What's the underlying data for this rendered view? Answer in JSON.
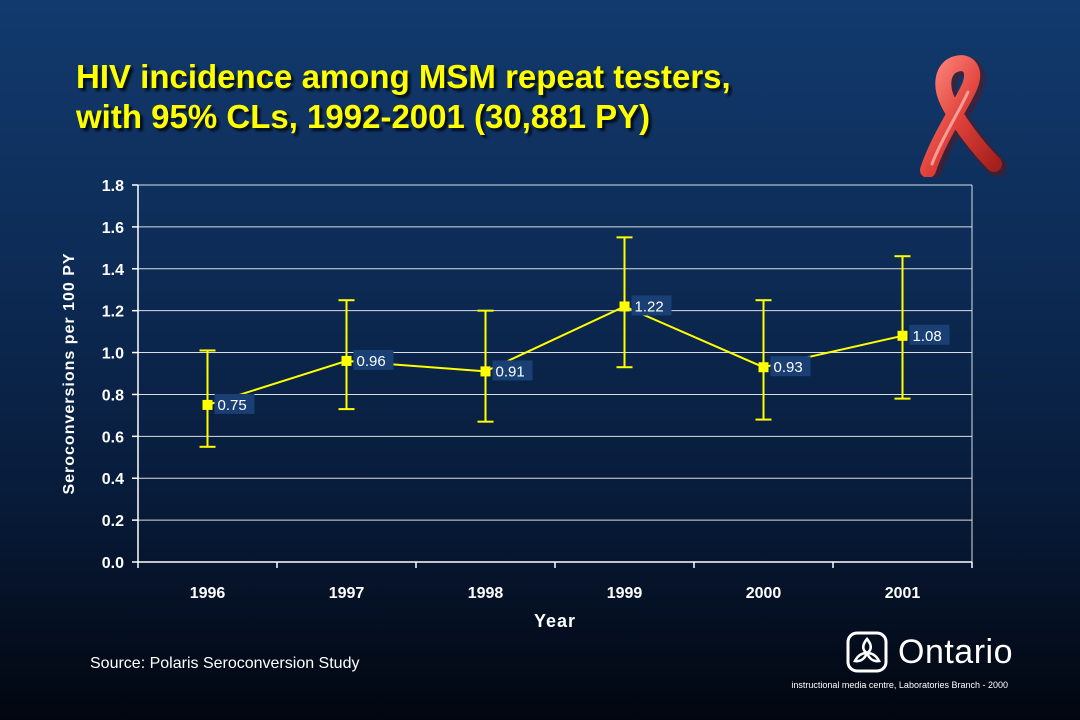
{
  "slide": {
    "title_line1": "HIV incidence among MSM repeat testers,",
    "title_line2": "with 95% CLs, 1992-2001 (30,881 PY)",
    "source": "Source: Polaris Seroconversion Study",
    "logo_text": "Ontario",
    "credit": "instructional media centre, Laboratories Branch - 2000"
  },
  "colors": {
    "title": "#ffff00",
    "series": "#ffff00",
    "label_box": "#1a3f74",
    "label_text": "#ffffff",
    "ribbon": "#e0413a",
    "gridline": "#ffffff"
  },
  "icons": {
    "ribbon": "aids-awareness-ribbon-icon",
    "logo": "trillium-icon"
  },
  "chart_data": {
    "type": "line",
    "title": "HIV incidence among MSM repeat testers, with 95% CLs, 1992-2001 (30,881 PY)",
    "xlabel": "Year",
    "ylabel": "Seroconversions per 100 PY",
    "categories": [
      "1996",
      "1997",
      "1998",
      "1999",
      "2000",
      "2001"
    ],
    "series": [
      {
        "values": [
          0.75,
          0.96,
          0.91,
          1.22,
          0.93,
          1.08
        ],
        "lower": [
          0.55,
          0.73,
          0.67,
          0.93,
          0.68,
          0.78
        ],
        "upper": [
          1.01,
          1.25,
          1.2,
          1.55,
          1.25,
          1.46
        ],
        "labels": [
          "0.75",
          "0.96",
          "0.91",
          "1.22",
          "0.93",
          "1.08"
        ]
      }
    ],
    "ylim": [
      0,
      1.8
    ],
    "yticks": [
      "0.0",
      "0.2",
      "0.4",
      "0.6",
      "0.8",
      "1.0",
      "1.2",
      "1.4",
      "1.6",
      "1.8"
    ],
    "grid": true,
    "error_bars": "95% confidence limits",
    "legend": "none"
  }
}
